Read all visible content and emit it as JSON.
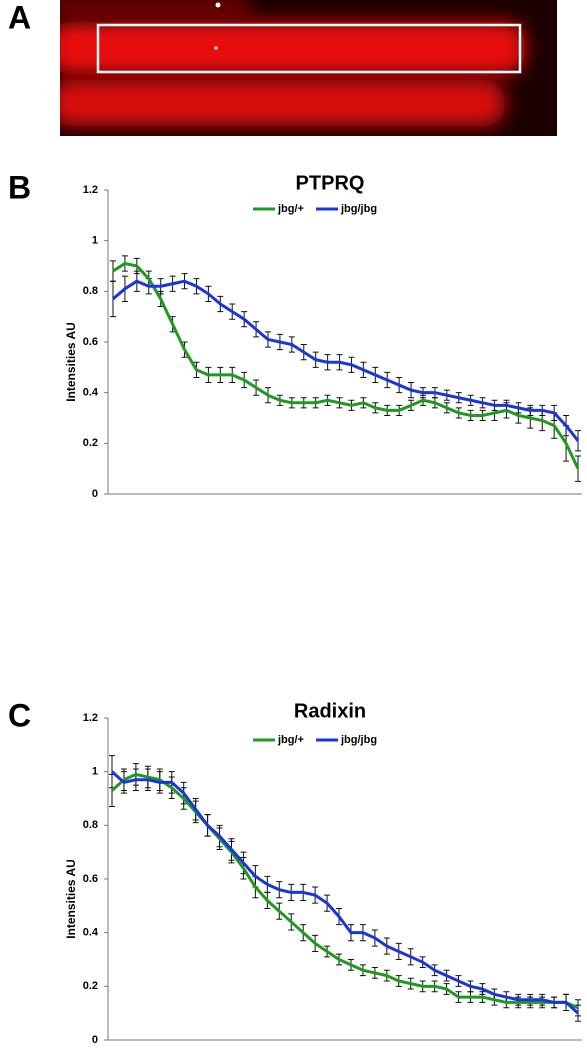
{
  "image_panel": {
    "panel": "A"
  },
  "chart_data": [
    {
      "type": "line",
      "panel": "B",
      "title": "PTPRQ",
      "y_label": "Intensities AU",
      "ylim": [
        0,
        1.2
      ],
      "yticks": [
        0,
        0.2,
        0.4,
        0.6,
        0.8,
        1,
        1.2
      ],
      "series": [
        {
          "name": "jbg/+",
          "color": "#1f9a1f",
          "values": [
            0.88,
            0.91,
            0.9,
            0.85,
            0.77,
            0.67,
            0.57,
            0.49,
            0.47,
            0.47,
            0.47,
            0.45,
            0.42,
            0.39,
            0.37,
            0.36,
            0.36,
            0.36,
            0.37,
            0.36,
            0.35,
            0.36,
            0.34,
            0.33,
            0.33,
            0.35,
            0.37,
            0.36,
            0.34,
            0.32,
            0.31,
            0.31,
            0.32,
            0.33,
            0.31,
            0.3,
            0.29,
            0.27,
            0.2,
            0.1
          ],
          "errors": [
            0.04,
            0.03,
            0.03,
            0.03,
            0.03,
            0.03,
            0.03,
            0.03,
            0.03,
            0.03,
            0.03,
            0.03,
            0.03,
            0.03,
            0.02,
            0.02,
            0.02,
            0.02,
            0.02,
            0.02,
            0.02,
            0.02,
            0.02,
            0.02,
            0.02,
            0.02,
            0.02,
            0.02,
            0.02,
            0.02,
            0.02,
            0.02,
            0.03,
            0.03,
            0.03,
            0.04,
            0.04,
            0.05,
            0.07,
            0.05
          ]
        },
        {
          "name": "jbg/jbg",
          "color": "#1a35e0",
          "values": [
            0.77,
            0.81,
            0.84,
            0.82,
            0.82,
            0.83,
            0.84,
            0.82,
            0.79,
            0.75,
            0.72,
            0.69,
            0.65,
            0.61,
            0.6,
            0.59,
            0.56,
            0.53,
            0.52,
            0.52,
            0.51,
            0.49,
            0.47,
            0.45,
            0.43,
            0.41,
            0.4,
            0.4,
            0.39,
            0.38,
            0.37,
            0.36,
            0.35,
            0.35,
            0.34,
            0.33,
            0.33,
            0.32,
            0.27,
            0.21
          ],
          "errors": [
            0.07,
            0.05,
            0.04,
            0.03,
            0.03,
            0.03,
            0.03,
            0.03,
            0.03,
            0.03,
            0.03,
            0.03,
            0.03,
            0.03,
            0.03,
            0.03,
            0.03,
            0.03,
            0.03,
            0.03,
            0.03,
            0.03,
            0.03,
            0.03,
            0.03,
            0.03,
            0.02,
            0.02,
            0.02,
            0.02,
            0.02,
            0.02,
            0.02,
            0.02,
            0.02,
            0.02,
            0.02,
            0.03,
            0.04,
            0.04
          ]
        }
      ]
    },
    {
      "type": "line",
      "panel": "C",
      "title": "Radixin",
      "y_label": "Intensities AU",
      "ylim": [
        0,
        1.2
      ],
      "yticks": [
        0,
        0.2,
        0.4,
        0.6,
        0.8,
        1,
        1.2
      ],
      "series": [
        {
          "name": "jbg/+",
          "color": "#1f9a1f",
          "values": [
            0.93,
            0.97,
            0.99,
            0.98,
            0.97,
            0.94,
            0.9,
            0.85,
            0.8,
            0.75,
            0.7,
            0.64,
            0.57,
            0.52,
            0.48,
            0.44,
            0.4,
            0.36,
            0.33,
            0.3,
            0.28,
            0.26,
            0.25,
            0.24,
            0.22,
            0.21,
            0.2,
            0.2,
            0.19,
            0.16,
            0.16,
            0.16,
            0.15,
            0.14,
            0.14,
            0.14,
            0.14,
            0.14,
            0.14,
            0.12
          ],
          "errors": [
            0.06,
            0.04,
            0.04,
            0.04,
            0.04,
            0.04,
            0.04,
            0.04,
            0.04,
            0.04,
            0.04,
            0.04,
            0.04,
            0.03,
            0.03,
            0.03,
            0.03,
            0.03,
            0.02,
            0.02,
            0.02,
            0.02,
            0.02,
            0.02,
            0.02,
            0.02,
            0.02,
            0.02,
            0.02,
            0.02,
            0.02,
            0.02,
            0.02,
            0.02,
            0.02,
            0.02,
            0.02,
            0.02,
            0.03,
            0.03
          ]
        },
        {
          "name": "jbg/jbg",
          "color": "#1a35e0",
          "values": [
            1.0,
            0.96,
            0.97,
            0.97,
            0.96,
            0.96,
            0.92,
            0.86,
            0.8,
            0.76,
            0.71,
            0.66,
            0.61,
            0.58,
            0.56,
            0.55,
            0.55,
            0.54,
            0.51,
            0.46,
            0.4,
            0.4,
            0.38,
            0.35,
            0.33,
            0.31,
            0.29,
            0.26,
            0.24,
            0.22,
            0.2,
            0.19,
            0.17,
            0.16,
            0.15,
            0.15,
            0.15,
            0.14,
            0.14,
            0.1
          ],
          "errors": [
            0.06,
            0.04,
            0.04,
            0.04,
            0.04,
            0.04,
            0.04,
            0.04,
            0.04,
            0.04,
            0.04,
            0.04,
            0.04,
            0.03,
            0.03,
            0.03,
            0.03,
            0.03,
            0.03,
            0.03,
            0.03,
            0.03,
            0.03,
            0.03,
            0.03,
            0.03,
            0.02,
            0.02,
            0.02,
            0.02,
            0.02,
            0.02,
            0.02,
            0.02,
            0.02,
            0.02,
            0.02,
            0.02,
            0.03,
            0.03
          ]
        }
      ]
    }
  ]
}
